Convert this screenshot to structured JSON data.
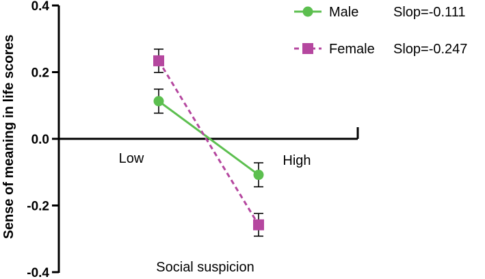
{
  "chart_data": {
    "type": "line",
    "ylabel": "Sense of meaning in life scores",
    "xlabel": "Social suspicion",
    "categories": [
      "Low",
      "High"
    ],
    "ylim": [
      -0.4,
      0.4
    ],
    "yticks": [
      "0.4",
      "0.2",
      "0.0",
      "-0.2",
      "-0.4"
    ],
    "ytick_values": [
      0.4,
      0.2,
      0.0,
      -0.2,
      -0.4
    ],
    "grid": false,
    "legend_position": "top-right",
    "series": [
      {
        "name": "Male",
        "annotation": "Slop=-0.111",
        "color": "#5cbf4f",
        "marker": "circle",
        "line_style": "solid",
        "values": [
          0.113,
          -0.108
        ],
        "error": [
          0.036,
          0.036
        ]
      },
      {
        "name": "Female",
        "annotation": "Slop=-0.247",
        "color": "#b5479f",
        "marker": "square",
        "line_style": "dashed",
        "values": [
          0.234,
          -0.258
        ],
        "error": [
          0.035,
          0.034
        ]
      }
    ]
  }
}
